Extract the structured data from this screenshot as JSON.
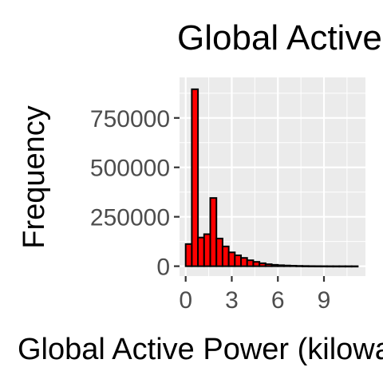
{
  "chart_data": {
    "type": "bar",
    "title": "Global Active Power",
    "xlabel": "Global Active Power (kilowatts)",
    "ylabel": "Frequency",
    "x_ticks": [
      0,
      3,
      6,
      9
    ],
    "x_tick_labels": [
      "0",
      "3",
      "6",
      "9"
    ],
    "y_ticks": [
      0,
      250000,
      500000,
      750000
    ],
    "y_tick_labels": [
      "0",
      "250000",
      "500000",
      "750000"
    ],
    "xlim": [
      -0.4,
      11.7
    ],
    "ylim": [
      -50000,
      955000
    ],
    "grid": true,
    "bin_width": 0.4,
    "bins": [
      0.0,
      0.4,
      0.8,
      1.2,
      1.6,
      2.0,
      2.4,
      2.8,
      3.2,
      3.6,
      4.0,
      4.4,
      4.8,
      5.2,
      5.6,
      6.0,
      6.4,
      6.8,
      7.2,
      7.6,
      8.0,
      8.4,
      8.8,
      9.2,
      9.6,
      10.0,
      10.4,
      10.8
    ],
    "values": [
      112000,
      895000,
      145000,
      162000,
      345000,
      140000,
      100000,
      70000,
      55000,
      42000,
      30000,
      22000,
      15000,
      10000,
      7000,
      5000,
      3500,
      2500,
      1500,
      1000,
      600,
      400,
      250,
      150,
      100,
      60,
      30,
      10
    ],
    "bar_fill": "#ff0000",
    "bar_outline": "#000000",
    "panel_background": "#ebebeb",
    "grid_color": "#ffffff"
  }
}
